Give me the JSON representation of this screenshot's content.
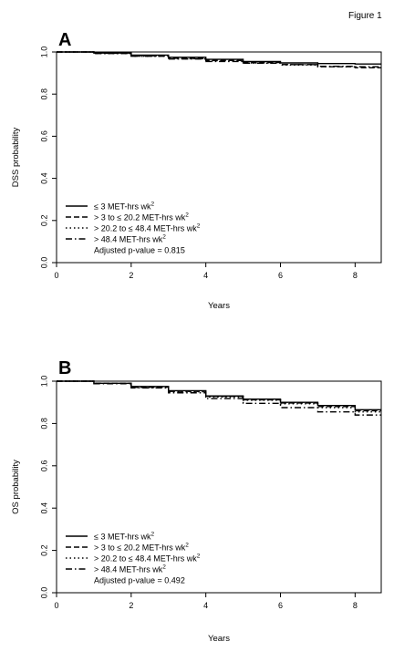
{
  "figure_label": "Figure 1",
  "chart_data": [
    {
      "panel": "A",
      "type": "line",
      "xlabel": "Years",
      "ylabel": "DSS probability",
      "xlim": [
        0,
        8.7
      ],
      "ylim": [
        0,
        1.0
      ],
      "xticks": [
        "0",
        "2",
        "4",
        "6",
        "8"
      ],
      "yticks": [
        "0.0",
        "0.2",
        "0.4",
        "0.6",
        "0.8",
        "1.0"
      ],
      "grid": false,
      "legend_position": "bottom-left",
      "annotation": "Adjusted p-value = 0.815",
      "series": [
        {
          "name": "≤ 3 MET-hrs wk",
          "superscript": "2",
          "style": "solid",
          "x": [
            0,
            1,
            2,
            3,
            4,
            5,
            6,
            7,
            8,
            8.7
          ],
          "y": [
            1.0,
            0.995,
            0.985,
            0.975,
            0.965,
            0.955,
            0.948,
            0.945,
            0.943,
            0.943
          ]
        },
        {
          "name": "> 3 to ≤ 20.2 MET-hrs wk",
          "superscript": "2",
          "style": "dashed",
          "x": [
            0,
            1,
            2,
            3,
            4,
            5,
            6,
            7,
            8,
            8.7
          ],
          "y": [
            1.0,
            0.994,
            0.982,
            0.97,
            0.96,
            0.95,
            0.94,
            0.93,
            0.925,
            0.925
          ]
        },
        {
          "name": "> 20.2 to ≤ 48.4 MET-hrs wk",
          "superscript": "2",
          "style": "dotted",
          "x": [
            0,
            1,
            2,
            3,
            4,
            5,
            6,
            7,
            8,
            8.7
          ],
          "y": [
            1.0,
            0.993,
            0.98,
            0.968,
            0.958,
            0.948,
            0.938,
            0.93,
            0.925,
            0.925
          ]
        },
        {
          "name": "> 48.4 MET-hrs wk",
          "superscript": "2",
          "style": "dashdot",
          "x": [
            0,
            1,
            2,
            3,
            4,
            5,
            6,
            7,
            8,
            8.7
          ],
          "y": [
            1.0,
            0.993,
            0.98,
            0.967,
            0.955,
            0.947,
            0.94,
            0.932,
            0.93,
            0.93
          ]
        }
      ]
    },
    {
      "panel": "B",
      "type": "line",
      "xlabel": "Years",
      "ylabel": "OS probability",
      "xlim": [
        0,
        8.7
      ],
      "ylim": [
        0,
        1.0
      ],
      "xticks": [
        "0",
        "2",
        "4",
        "6",
        "8"
      ],
      "yticks": [
        "0.0",
        "0.2",
        "0.4",
        "0.6",
        "0.8",
        "1.0"
      ],
      "grid": false,
      "legend_position": "bottom-left",
      "annotation": "Adjusted p-value = 0.492",
      "series": [
        {
          "name": "≤ 3 MET-hrs wk",
          "superscript": "2",
          "style": "solid",
          "x": [
            0,
            1,
            2,
            3,
            4,
            5,
            6,
            7,
            8,
            8.7
          ],
          "y": [
            1.0,
            0.99,
            0.975,
            0.955,
            0.93,
            0.915,
            0.9,
            0.885,
            0.865,
            0.865
          ]
        },
        {
          "name": "> 3 to ≤ 20.2 MET-hrs wk",
          "superscript": "2",
          "style": "dashed",
          "x": [
            0,
            1,
            2,
            3,
            4,
            5,
            6,
            7,
            8,
            8.7
          ],
          "y": [
            1.0,
            0.99,
            0.972,
            0.952,
            0.928,
            0.912,
            0.897,
            0.88,
            0.86,
            0.86
          ]
        },
        {
          "name": "> 20.2 to ≤ 48.4 MET-hrs wk",
          "superscript": "2",
          "style": "dotted",
          "x": [
            0,
            1,
            2,
            3,
            4,
            5,
            6,
            7,
            8,
            8.7
          ],
          "y": [
            1.0,
            0.99,
            0.97,
            0.95,
            0.925,
            0.91,
            0.893,
            0.875,
            0.855,
            0.855
          ]
        },
        {
          "name": "> 48.4 MET-hrs wk",
          "superscript": "2",
          "style": "dashdot",
          "x": [
            0,
            1,
            2,
            3,
            4,
            5,
            6,
            7,
            8,
            8.7
          ],
          "y": [
            1.0,
            0.988,
            0.968,
            0.945,
            0.918,
            0.895,
            0.875,
            0.855,
            0.84,
            0.84
          ]
        }
      ]
    }
  ]
}
